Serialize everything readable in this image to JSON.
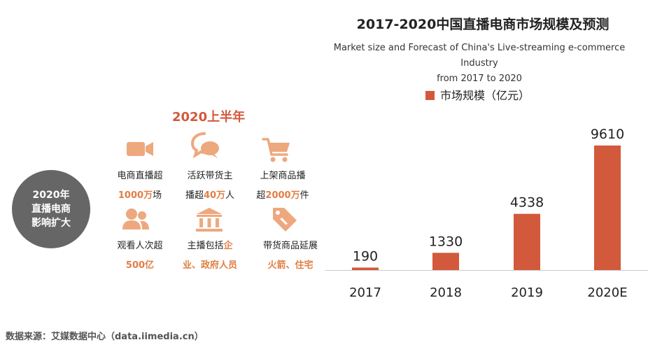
{
  "colors": {
    "accent": "#d2593b",
    "highlight": "#e07f45",
    "icon": "#eea87e",
    "circle_bg": "#666666"
  },
  "chart_data": {
    "type": "bar",
    "title": "2017-2020中国直播电商市场规模及预测",
    "subtitle_line1": "Market size and Forecast of China's Live-streaming e-commerce Industry",
    "subtitle_line2": "from 2017 to 2020",
    "categories": [
      "2017",
      "2018",
      "2019",
      "2020E"
    ],
    "series": [
      {
        "name": "市场规模（亿元）",
        "values": [
          190,
          1330,
          4338,
          9610
        ]
      }
    ],
    "data_labels": [
      "190",
      "1330",
      "4338",
      "9610"
    ],
    "ylim": [
      0,
      9610
    ],
    "xlabel": "",
    "ylabel": "",
    "legend_position": "top"
  },
  "panel": {
    "title": "2020上半年",
    "circle_lines": [
      "2020年",
      "直播电商",
      "影响扩大"
    ],
    "stats": [
      {
        "icon": "video-camera-icon",
        "line1": "电商直播超",
        "line2_hl": "1000万",
        "line2_rest": "场"
      },
      {
        "icon": "speech-bubbles-icon",
        "line1": "活跃带货主",
        "line2_pre": "播超",
        "line2_hl": "40万",
        "line2_rest": "人"
      },
      {
        "icon": "shopping-cart-icon",
        "line1": "上架商品播",
        "line2_pre": "超",
        "line2_hl": "2000万",
        "line2_rest": "件"
      },
      {
        "icon": "people-icon",
        "line1": "观看人次超",
        "line2_hl": "500亿"
      },
      {
        "icon": "government-building-icon",
        "line1_pre": "主播包括",
        "line1_hl": "企",
        "line2_hl": "业、政府人员"
      },
      {
        "icon": "price-tag-icon",
        "line1": "带货商品延展",
        "line2_hl": "火箭、住宅"
      }
    ]
  },
  "footer": {
    "source": "数据来源：艾媒数据中心（data.iimedia.cn）"
  }
}
